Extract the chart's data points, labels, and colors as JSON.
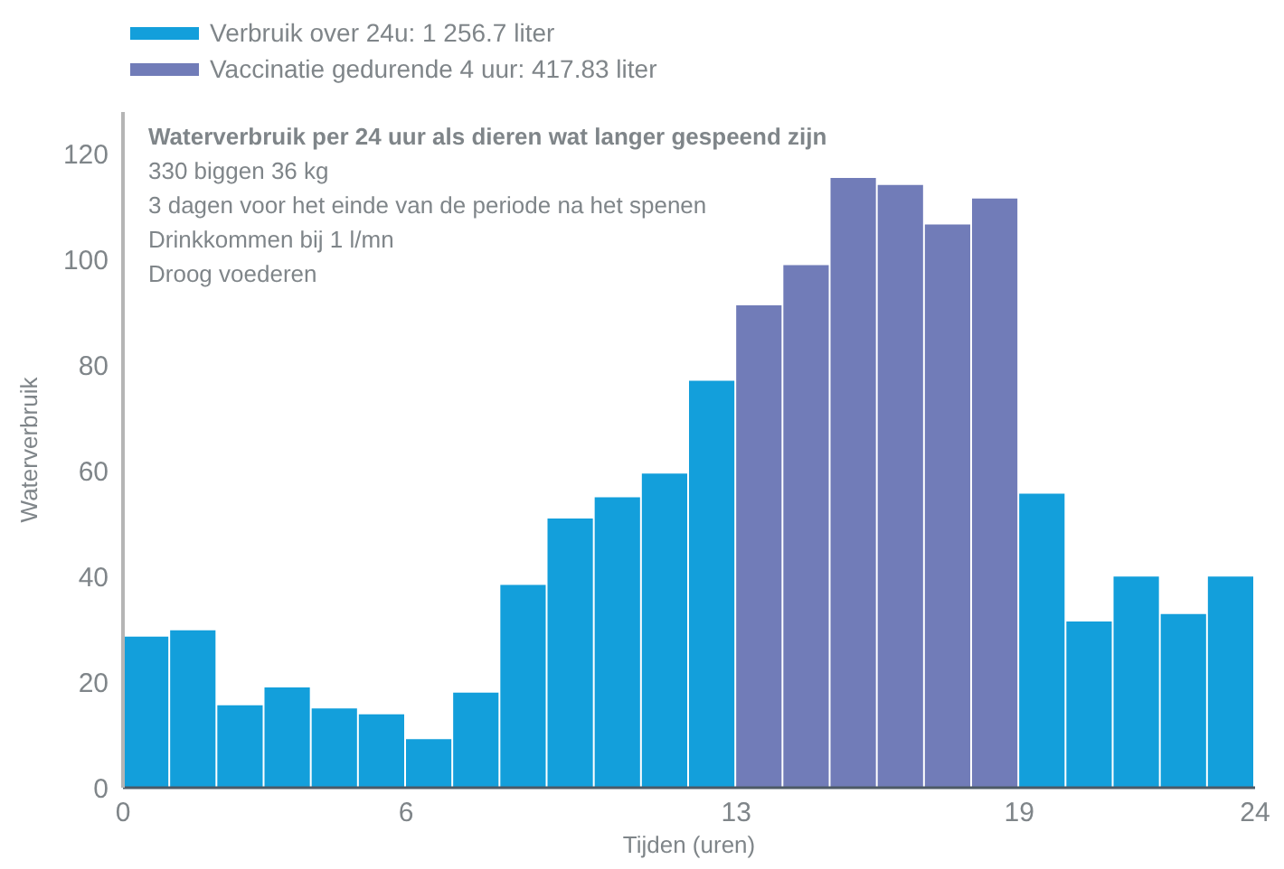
{
  "chart_data": {
    "type": "bar",
    "title": "Waterverbruik per 24 uur als dieren wat langer gespeend zijn",
    "annotations": [
      "330 biggen 36 kg",
      "3 dagen voor het einde van de periode na het spenen",
      "Drinkkommen bij 1 l/mn",
      "Droog voederen"
    ],
    "xlabel": "Tijden (uren)",
    "ylabel": "Waterverbruik",
    "x": [
      0.5,
      1.5,
      2.5,
      3.5,
      4.5,
      5.5,
      6.5,
      7.5,
      8.5,
      9.5,
      10.5,
      11.5,
      12.5,
      13.5,
      14.5,
      15.5,
      16.5,
      17.5,
      18.5,
      19.5,
      20.5,
      21.5,
      22.5,
      23.5
    ],
    "series": [
      {
        "name": "Verbruik over 24u: 1 256.7 liter",
        "color": "#139fdb",
        "values": [
          28.6,
          29.8,
          15.6,
          19.0,
          15.0,
          13.9,
          9.2,
          18.0,
          38.4,
          51.0,
          55.0,
          59.5,
          77.1,
          null,
          null,
          null,
          null,
          null,
          null,
          55.7,
          31.5,
          40.0,
          32.9,
          40.0
        ]
      },
      {
        "name": "Vaccinatie gedurende 4 uur: 417.83 liter",
        "color": "#717cb8",
        "values": [
          null,
          null,
          null,
          null,
          null,
          null,
          null,
          null,
          null,
          null,
          null,
          null,
          null,
          91.4,
          99.0,
          115.5,
          114.2,
          106.7,
          111.6,
          null,
          null,
          null,
          null,
          null
        ]
      }
    ],
    "stacked": true,
    "xlim": [
      0,
      24
    ],
    "xticks": [
      0,
      6,
      13,
      19,
      24
    ],
    "ylim": [
      0,
      128
    ],
    "yticks": [
      0,
      20,
      40,
      60,
      80,
      100,
      120
    ],
    "legend": "top left"
  }
}
